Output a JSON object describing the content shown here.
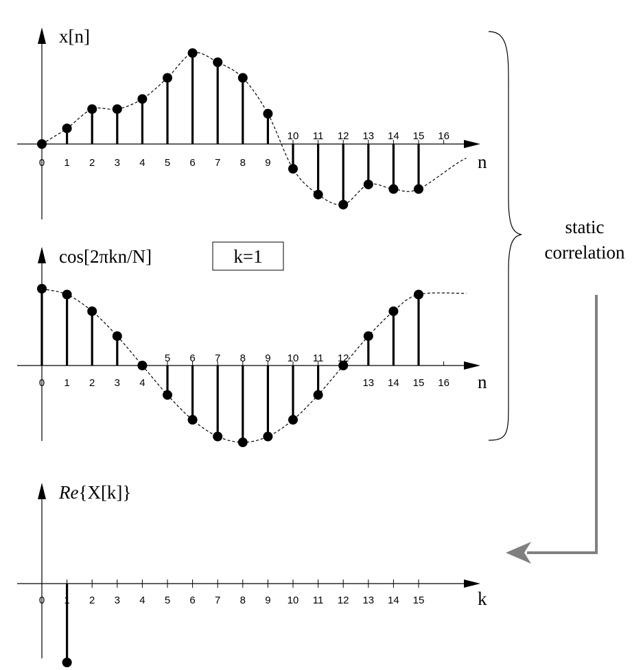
{
  "chart_data": [
    {
      "type": "stem",
      "title": "x[n]",
      "xlabel": "n",
      "tick_labels": [
        "0",
        "1",
        "2",
        "3",
        "4",
        "5",
        "6",
        "7",
        "8",
        "9",
        "10",
        "11",
        "12",
        "13",
        "14",
        "15",
        "16"
      ],
      "x": [
        0,
        1,
        2,
        3,
        4,
        5,
        6,
        7,
        8,
        9,
        10,
        11,
        12,
        13,
        14,
        15
      ],
      "values": [
        0,
        0.17,
        0.38,
        0.38,
        0.49,
        0.72,
        0.99,
        0.89,
        0.72,
        0.33,
        -0.27,
        -0.55,
        -0.66,
        -0.44,
        -0.49,
        -0.49
      ],
      "envelope": "dashed"
    },
    {
      "type": "stem",
      "title": "cos[2πkn/N]",
      "param_label": "k=1",
      "xlabel": "n",
      "tick_labels": [
        "0",
        "1",
        "2",
        "3",
        "4",
        "5",
        "6",
        "7",
        "8",
        "9",
        "10",
        "11",
        "12",
        "13",
        "14",
        "15",
        "16"
      ],
      "x": [
        0,
        1,
        2,
        3,
        4,
        5,
        6,
        7,
        8,
        9,
        10,
        11,
        12,
        13,
        14,
        15
      ],
      "values": [
        1.0,
        0.924,
        0.707,
        0.383,
        0.0,
        -0.383,
        -0.707,
        -0.924,
        -1.0,
        -0.924,
        -0.707,
        -0.383,
        0.0,
        0.383,
        0.707,
        0.924
      ],
      "envelope": "dashed"
    },
    {
      "type": "stem",
      "title_italic": "Re",
      "title_rest": "{X[k]}",
      "xlabel": "k",
      "tick_labels": [
        "0",
        "1",
        "2",
        "3",
        "4",
        "5",
        "6",
        "7",
        "8",
        "9",
        "10",
        "11",
        "12",
        "13",
        "14",
        "15"
      ],
      "x": [
        1
      ],
      "values": [
        -1.0
      ]
    }
  ],
  "annotation": {
    "line1": "static",
    "line2": "correlation"
  }
}
